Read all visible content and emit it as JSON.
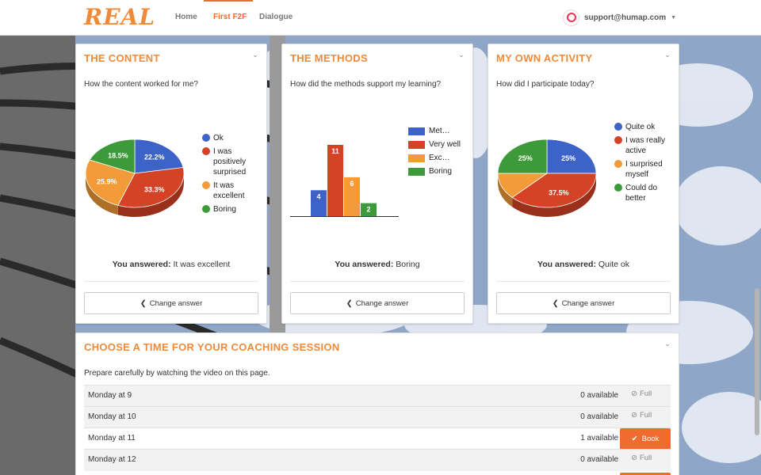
{
  "app": {
    "logo": "REAL"
  },
  "nav": {
    "home": "Home",
    "first_f2f": "First F2F",
    "dialogue": "Dialogue",
    "user_email": "support@humap.com"
  },
  "colors": {
    "accent": "#ef6b2f",
    "title": "#ef8a3a",
    "blue": "#3d63c9",
    "red": "#d44325",
    "orange": "#f29b38",
    "green": "#3d9a3a"
  },
  "content_card": {
    "title": "THE CONTENT",
    "question": "How the content worked for me?",
    "answer_prefix": "You answered:",
    "answer_value": "It was excellent",
    "change_label": "Change answer",
    "legend": [
      "Ok",
      "I was positively surprised",
      "It was excellent",
      "Boring"
    ]
  },
  "methods_card": {
    "title": "THE METHODS",
    "question": "How did the methods support my learning?",
    "answer_prefix": "You answered:",
    "answer_value": "Boring",
    "change_label": "Change answer",
    "legend": [
      "Met…",
      "Very well",
      "Exc…",
      "Boring"
    ]
  },
  "activity_card": {
    "title": "MY OWN ACTIVITY",
    "question": "How did I participate today?",
    "answer_prefix": "You answered:",
    "answer_value": "Quite ok",
    "change_label": "Change answer",
    "legend": [
      "Quite ok",
      "I was really active",
      "I surprised myself",
      "Could do better"
    ]
  },
  "chart_data": [
    {
      "type": "pie",
      "categories": [
        "Ok",
        "I was positively surprised",
        "It was excellent",
        "Boring"
      ],
      "values": [
        22.2,
        33.3,
        25.9,
        18.5
      ],
      "labels": [
        "22.2%",
        "33.3%",
        "25.9%",
        "18.5%"
      ],
      "colors": [
        "#3d63c9",
        "#d44325",
        "#f29b38",
        "#3d9a3a"
      ]
    },
    {
      "type": "bar",
      "categories": [
        "Met…",
        "Very well",
        "Exc…",
        "Boring"
      ],
      "values": [
        4,
        11,
        6,
        2
      ],
      "labels": [
        "4",
        "11",
        "6",
        "2"
      ],
      "colors": [
        "#3d63c9",
        "#d44325",
        "#f29b38",
        "#3d9a3a"
      ]
    },
    {
      "type": "pie",
      "categories": [
        "Quite ok",
        "I was really active",
        "I surprised myself",
        "Could do better"
      ],
      "values": [
        25,
        37.5,
        12.5,
        25
      ],
      "labels": [
        "25%",
        "37.5%",
        "",
        "25%"
      ],
      "colors": [
        "#3d63c9",
        "#d44325",
        "#f29b38",
        "#3d9a3a"
      ]
    }
  ],
  "coaching": {
    "title": "CHOOSE A TIME FOR YOUR COACHING SESSION",
    "description": "Prepare carefully by watching the video on this page.",
    "full_label": "Full",
    "book_label": "Book",
    "slots": [
      {
        "time": "Monday at 9",
        "available": "0 available",
        "action": "full"
      },
      {
        "time": "Monday at 10",
        "available": "0 available",
        "action": "full"
      },
      {
        "time": "Monday at 11",
        "available": "1 available",
        "action": "book"
      },
      {
        "time": "Monday at 12",
        "available": "0 available",
        "action": "full"
      }
    ]
  }
}
